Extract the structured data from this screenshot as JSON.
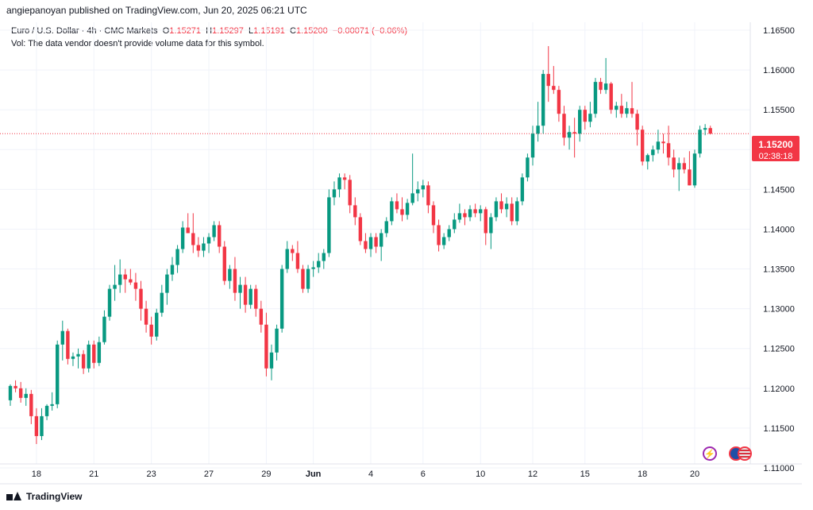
{
  "header": {
    "published_by": "angiepanoyan published on TradingView.com, Jun 20, 2025 06:21 UTC"
  },
  "legend": {
    "symbol": "Euro / U.S. Dollar · 4h · CMC Markets",
    "o_label": "O",
    "o_value": "1.15271",
    "h_label": "H",
    "h_value": "1.15297",
    "l_label": "L",
    "l_value": "1.15191",
    "c_label": "C",
    "c_value": "1.15200",
    "change": "−0.00071 (−0.06%)",
    "volume_note": "Vol: The data vendor doesn't provide volume data for this symbol."
  },
  "price_badge": {
    "price": "1.15200",
    "countdown": "02:38:18"
  },
  "footer": {
    "brand": "TradingView"
  },
  "colors": {
    "up": "#089981",
    "down": "#f23645",
    "grid": "#f0f3fa",
    "axis_text": "#131722",
    "event_icon": "#9c27b0",
    "flag_icon": "#f23645"
  },
  "icons": [
    "lightning-event-icon",
    "eu-flag-icon",
    "us-flag-icon"
  ],
  "chart_data": {
    "type": "candlestick",
    "title": "Euro / U.S. Dollar · 4h · CMC Markets",
    "xlabel": "",
    "ylabel": "",
    "ylim": [
      1.1105,
      1.166
    ],
    "grid": true,
    "y_ticks": [
      "1.16500",
      "1.16000",
      "1.15500",
      "1.15000",
      "1.14500",
      "1.14000",
      "1.13500",
      "1.13000",
      "1.12500",
      "1.12000",
      "1.11500",
      "1.11000"
    ],
    "x_ticks": [
      {
        "label": "18",
        "bold": false,
        "index": 5
      },
      {
        "label": "21",
        "bold": false,
        "index": 16
      },
      {
        "label": "23",
        "bold": false,
        "index": 27
      },
      {
        "label": "27",
        "bold": false,
        "index": 38
      },
      {
        "label": "29",
        "bold": false,
        "index": 49
      },
      {
        "label": "Jun",
        "bold": true,
        "index": 58
      },
      {
        "label": "4",
        "bold": false,
        "index": 69
      },
      {
        "label": "6",
        "bold": false,
        "index": 79
      },
      {
        "label": "10",
        "bold": false,
        "index": 90
      },
      {
        "label": "12",
        "bold": false,
        "index": 100
      },
      {
        "label": "15",
        "bold": false,
        "index": 110
      },
      {
        "label": "18",
        "bold": false,
        "index": 121
      },
      {
        "label": "20",
        "bold": false,
        "index": 131
      }
    ],
    "last_price": 1.152,
    "candles": [
      [
        1.1185,
        1.1205,
        1.1178,
        1.1203
      ],
      [
        1.1203,
        1.121,
        1.1195,
        1.12
      ],
      [
        1.12,
        1.1208,
        1.1182,
        1.1188
      ],
      [
        1.1188,
        1.12,
        1.1178,
        1.1193
      ],
      [
        1.1193,
        1.1198,
        1.1155,
        1.1165
      ],
      [
        1.1165,
        1.1175,
        1.113,
        1.114
      ],
      [
        1.114,
        1.1175,
        1.1135,
        1.1165
      ],
      [
        1.1165,
        1.118,
        1.116,
        1.1178
      ],
      [
        1.1178,
        1.1195,
        1.1172,
        1.118
      ],
      [
        1.118,
        1.126,
        1.1175,
        1.1255
      ],
      [
        1.1255,
        1.1285,
        1.1235,
        1.1272
      ],
      [
        1.1272,
        1.1275,
        1.123,
        1.1237
      ],
      [
        1.1237,
        1.1245,
        1.1228,
        1.124
      ],
      [
        1.124,
        1.125,
        1.1225,
        1.1243
      ],
      [
        1.1243,
        1.1248,
        1.1218,
        1.1225
      ],
      [
        1.1225,
        1.126,
        1.122,
        1.1255
      ],
      [
        1.1255,
        1.126,
        1.1225,
        1.1232
      ],
      [
        1.1232,
        1.1265,
        1.1228,
        1.1258
      ],
      [
        1.1258,
        1.1298,
        1.1255,
        1.129
      ],
      [
        1.129,
        1.133,
        1.1285,
        1.1325
      ],
      [
        1.1325,
        1.1355,
        1.131,
        1.133
      ],
      [
        1.133,
        1.1362,
        1.132,
        1.1343
      ],
      [
        1.1343,
        1.135,
        1.132,
        1.1337
      ],
      [
        1.1337,
        1.135,
        1.133,
        1.1333
      ],
      [
        1.1333,
        1.1345,
        1.131,
        1.1325
      ],
      [
        1.1325,
        1.1335,
        1.1285,
        1.13
      ],
      [
        1.13,
        1.131,
        1.127,
        1.128
      ],
      [
        1.128,
        1.129,
        1.1255,
        1.1265
      ],
      [
        1.1265,
        1.13,
        1.126,
        1.1295
      ],
      [
        1.1295,
        1.133,
        1.129,
        1.132
      ],
      [
        1.132,
        1.135,
        1.1305,
        1.1343
      ],
      [
        1.1343,
        1.1365,
        1.1335,
        1.1355
      ],
      [
        1.1355,
        1.138,
        1.1345,
        1.1375
      ],
      [
        1.1375,
        1.141,
        1.137,
        1.1402
      ],
      [
        1.1402,
        1.142,
        1.1395,
        1.1395
      ],
      [
        1.1395,
        1.142,
        1.137,
        1.138
      ],
      [
        1.138,
        1.139,
        1.1365,
        1.1373
      ],
      [
        1.1373,
        1.139,
        1.1365,
        1.1382
      ],
      [
        1.1382,
        1.1395,
        1.137,
        1.139
      ],
      [
        1.139,
        1.141,
        1.1385,
        1.1405
      ],
      [
        1.1405,
        1.141,
        1.137,
        1.1378
      ],
      [
        1.1378,
        1.1385,
        1.133,
        1.1335
      ],
      [
        1.1335,
        1.1355,
        1.1325,
        1.135
      ],
      [
        1.135,
        1.1365,
        1.131,
        1.132
      ],
      [
        1.132,
        1.134,
        1.13,
        1.133
      ],
      [
        1.133,
        1.134,
        1.1295,
        1.1305
      ],
      [
        1.1305,
        1.133,
        1.13,
        1.1325
      ],
      [
        1.1325,
        1.133,
        1.129,
        1.13
      ],
      [
        1.13,
        1.131,
        1.127,
        1.128
      ],
      [
        1.128,
        1.1295,
        1.1215,
        1.1225
      ],
      [
        1.1225,
        1.1255,
        1.121,
        1.1245
      ],
      [
        1.1245,
        1.128,
        1.1235,
        1.1275
      ],
      [
        1.1275,
        1.1355,
        1.127,
        1.135
      ],
      [
        1.135,
        1.1385,
        1.1345,
        1.1375
      ],
      [
        1.1375,
        1.138,
        1.136,
        1.137
      ],
      [
        1.137,
        1.1385,
        1.1345,
        1.135
      ],
      [
        1.135,
        1.1355,
        1.132,
        1.1325
      ],
      [
        1.1325,
        1.1355,
        1.132,
        1.135
      ],
      [
        1.135,
        1.136,
        1.134,
        1.1352
      ],
      [
        1.1352,
        1.137,
        1.1345,
        1.136
      ],
      [
        1.136,
        1.1375,
        1.135,
        1.137
      ],
      [
        1.137,
        1.145,
        1.1365,
        1.144
      ],
      [
        1.144,
        1.146,
        1.143,
        1.145
      ],
      [
        1.145,
        1.147,
        1.144,
        1.1465
      ],
      [
        1.1465,
        1.147,
        1.145,
        1.1462
      ],
      [
        1.1462,
        1.1468,
        1.142,
        1.143
      ],
      [
        1.143,
        1.144,
        1.1405,
        1.1415
      ],
      [
        1.1415,
        1.142,
        1.138,
        1.1385
      ],
      [
        1.1385,
        1.1395,
        1.137,
        1.1375
      ],
      [
        1.1375,
        1.1395,
        1.1365,
        1.139
      ],
      [
        1.139,
        1.1395,
        1.137,
        1.1378
      ],
      [
        1.1378,
        1.14,
        1.136,
        1.1395
      ],
      [
        1.1395,
        1.1415,
        1.139,
        1.141
      ],
      [
        1.141,
        1.144,
        1.1405,
        1.1435
      ],
      [
        1.1435,
        1.1445,
        1.142,
        1.1425
      ],
      [
        1.1425,
        1.144,
        1.141,
        1.1418
      ],
      [
        1.1418,
        1.1438,
        1.1412,
        1.1433
      ],
      [
        1.1433,
        1.1495,
        1.143,
        1.1445
      ],
      [
        1.1445,
        1.146,
        1.1435,
        1.145
      ],
      [
        1.145,
        1.1462,
        1.144,
        1.1455
      ],
      [
        1.1455,
        1.146,
        1.142,
        1.143
      ],
      [
        1.143,
        1.1435,
        1.1395,
        1.1405
      ],
      [
        1.1405,
        1.1412,
        1.1372,
        1.138
      ],
      [
        1.138,
        1.1395,
        1.1375,
        1.139
      ],
      [
        1.139,
        1.1405,
        1.1385,
        1.14
      ],
      [
        1.14,
        1.142,
        1.1395,
        1.1412
      ],
      [
        1.1412,
        1.1432,
        1.1408,
        1.142
      ],
      [
        1.142,
        1.1425,
        1.1405,
        1.1415
      ],
      [
        1.1415,
        1.143,
        1.141,
        1.1425
      ],
      [
        1.1425,
        1.1432,
        1.1415,
        1.142
      ],
      [
        1.142,
        1.143,
        1.141,
        1.1425
      ],
      [
        1.1425,
        1.1428,
        1.138,
        1.1395
      ],
      [
        1.1395,
        1.142,
        1.1375,
        1.1415
      ],
      [
        1.1415,
        1.144,
        1.141,
        1.1435
      ],
      [
        1.1435,
        1.1445,
        1.142,
        1.1425
      ],
      [
        1.1425,
        1.144,
        1.1415,
        1.1432
      ],
      [
        1.1432,
        1.144,
        1.1405,
        1.141
      ],
      [
        1.141,
        1.144,
        1.1405,
        1.1435
      ],
      [
        1.1435,
        1.147,
        1.143,
        1.1465
      ],
      [
        1.1465,
        1.1495,
        1.146,
        1.149
      ],
      [
        1.149,
        1.153,
        1.148,
        1.152
      ],
      [
        1.152,
        1.156,
        1.151,
        1.153
      ],
      [
        1.153,
        1.16,
        1.152,
        1.1595
      ],
      [
        1.1595,
        1.163,
        1.156,
        1.158
      ],
      [
        1.158,
        1.1605,
        1.157,
        1.1575
      ],
      [
        1.1575,
        1.158,
        1.1535,
        1.1545
      ],
      [
        1.1545,
        1.1555,
        1.1505,
        1.1515
      ],
      [
        1.1515,
        1.153,
        1.15,
        1.1522
      ],
      [
        1.1522,
        1.154,
        1.149,
        1.152
      ],
      [
        1.152,
        1.1555,
        1.151,
        1.155
      ],
      [
        1.155,
        1.1555,
        1.1525,
        1.1535
      ],
      [
        1.1535,
        1.156,
        1.1528,
        1.1545
      ],
      [
        1.1545,
        1.159,
        1.154,
        1.1585
      ],
      [
        1.1585,
        1.159,
        1.157,
        1.1575
      ],
      [
        1.1575,
        1.1615,
        1.157,
        1.1583
      ],
      [
        1.1583,
        1.1585,
        1.1545,
        1.155
      ],
      [
        1.155,
        1.156,
        1.154,
        1.1555
      ],
      [
        1.1555,
        1.157,
        1.154,
        1.1545
      ],
      [
        1.1545,
        1.156,
        1.154,
        1.1552
      ],
      [
        1.1552,
        1.1585,
        1.154,
        1.1545
      ],
      [
        1.1545,
        1.155,
        1.1505,
        1.1525
      ],
      [
        1.1525,
        1.153,
        1.148,
        1.1485
      ],
      [
        1.1485,
        1.1495,
        1.1475,
        1.1493
      ],
      [
        1.1493,
        1.1505,
        1.1485,
        1.15
      ],
      [
        1.15,
        1.1525,
        1.1495,
        1.151
      ],
      [
        1.151,
        1.152,
        1.1495,
        1.1508
      ],
      [
        1.1508,
        1.153,
        1.148,
        1.149
      ],
      [
        1.149,
        1.15,
        1.1465,
        1.1475
      ],
      [
        1.1475,
        1.149,
        1.1448,
        1.1483
      ],
      [
        1.1483,
        1.149,
        1.147,
        1.1475
      ],
      [
        1.1475,
        1.1498,
        1.1455,
        1.1455
      ],
      [
        1.1455,
        1.15,
        1.1452,
        1.1495
      ],
      [
        1.1495,
        1.153,
        1.149,
        1.1525
      ],
      [
        1.1525,
        1.1532,
        1.1518,
        1.1527
      ],
      [
        1.1527,
        1.153,
        1.1519,
        1.152
      ]
    ]
  }
}
